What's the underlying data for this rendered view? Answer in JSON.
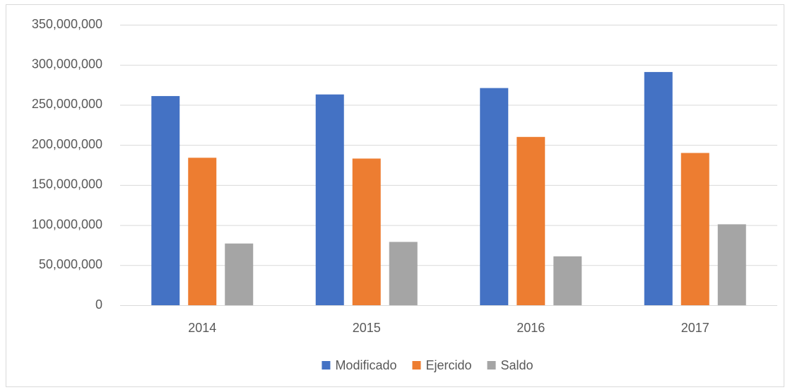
{
  "chart_data": {
    "type": "bar",
    "categories": [
      "2014",
      "2015",
      "2016",
      "2017"
    ],
    "series": [
      {
        "name": "Modificado",
        "color": "#4472c4",
        "values": [
          261000000,
          263000000,
          271000000,
          291000000
        ]
      },
      {
        "name": "Ejercido",
        "color": "#ed7d31",
        "values": [
          184000000,
          183000000,
          210000000,
          190000000
        ]
      },
      {
        "name": "Saldo",
        "color": "#a5a5a5",
        "values": [
          77000000,
          79000000,
          61000000,
          101000000
        ]
      }
    ],
    "ylim": [
      0,
      350000000
    ],
    "yticks": [
      0,
      {
        "value": 50000000,
        "label": "50,000,000"
      },
      {
        "value": 100000000,
        "label": "100,000,000"
      },
      {
        "value": 150000000,
        "label": "150,000,000"
      },
      {
        "value": 200000000,
        "label": "200,000,000"
      },
      {
        "value": 250000000,
        "label": "250,000,000"
      },
      {
        "value": 300000000,
        "label": "300,000,000"
      },
      {
        "value": 350000000,
        "label": "350,000,000"
      }
    ],
    "grid": true,
    "legend": "bottom"
  }
}
